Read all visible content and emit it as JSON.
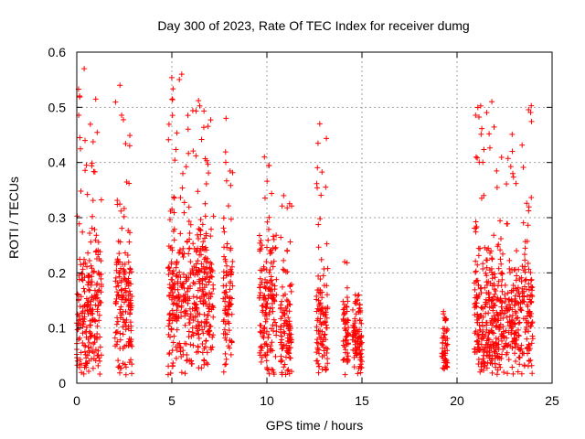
{
  "chart_data": {
    "type": "scatter",
    "title": "Day 300 of 2023, Rate Of TEC Index for receiver dumg",
    "xlabel": "GPS time / hours",
    "ylabel": "ROTI / TECUs",
    "xlim": [
      0,
      25
    ],
    "ylim": [
      0,
      0.6
    ],
    "xticks": [
      0,
      5,
      10,
      15,
      20,
      25
    ],
    "xtick_labels": [
      "0",
      "5",
      "10",
      "15",
      "20",
      "25"
    ],
    "yticks": [
      0,
      0.1,
      0.2,
      0.3,
      0.4,
      0.5,
      0.6
    ],
    "ytick_labels": [
      "0",
      "0.1",
      "0.2",
      "0.3",
      "0.4",
      "0.5",
      "0.6"
    ],
    "grid": true,
    "legend": "none",
    "marker": "+",
    "color": "#ff0000",
    "series": [
      {
        "clusters": [
          {
            "x": [
              0.0,
              1.3
            ],
            "y_typ": 0.11,
            "y_max": 0.57
          },
          {
            "x": [
              2.0,
              2.9
            ],
            "y_typ": 0.13,
            "y_max": 0.54
          },
          {
            "x": [
              4.8,
              7.2
            ],
            "y_typ": 0.14,
            "y_max": 0.56
          },
          {
            "x": [
              7.7,
              8.2
            ],
            "y_typ": 0.12,
            "y_max": 0.48
          },
          {
            "x": [
              9.6,
              10.5
            ],
            "y_typ": 0.12,
            "y_max": 0.41
          },
          {
            "x": [
              10.7,
              11.3
            ],
            "y_typ": 0.08,
            "y_max": 0.34
          },
          {
            "x": [
              12.6,
              13.2
            ],
            "y_typ": 0.09,
            "y_max": 0.47
          },
          {
            "x": [
              14.0,
              14.3
            ],
            "y_typ": 0.07,
            "y_max": 0.22
          },
          {
            "x": [
              14.5,
              15.0
            ],
            "y_typ": 0.07,
            "y_max": 0.16
          },
          {
            "x": [
              19.2,
              19.5
            ],
            "y_typ": 0.05,
            "y_max": 0.13
          },
          {
            "x": [
              20.9,
              24.0
            ],
            "y_typ": 0.1,
            "y_max": 0.51
          }
        ]
      }
    ]
  }
}
